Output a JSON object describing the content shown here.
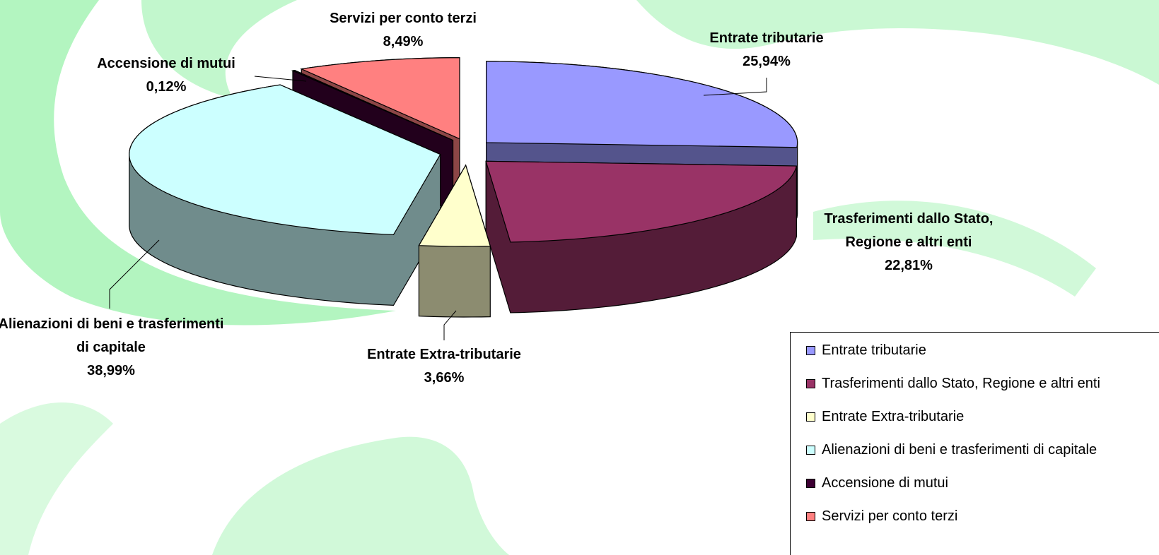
{
  "chart_data": {
    "type": "pie",
    "categories": [
      "Entrate tributarie",
      "Trasferimenti dallo Stato, Regione e altri enti",
      "Entrate Extra-tributarie",
      "Alienazioni di beni e trasferimenti di capitale",
      "Accensione di mutui",
      "Servizi per conto terzi"
    ],
    "values": [
      25.94,
      22.81,
      3.66,
      38.99,
      0.12,
      8.49
    ],
    "value_labels": [
      "25,94%",
      "22,81%",
      "3,66%",
      "38,99%",
      "0,12%",
      "8,49%"
    ],
    "colors": [
      "#9999ff",
      "#993366",
      "#ffffcc",
      "#ccffff",
      "#3d0033",
      "#ff8080"
    ],
    "legend": "bottom-right"
  }
}
